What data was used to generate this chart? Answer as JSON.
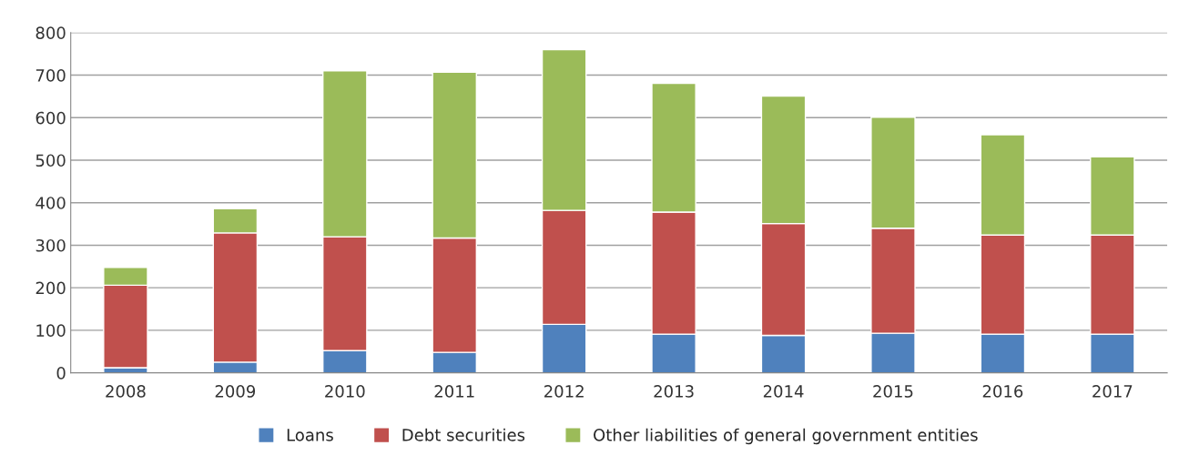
{
  "chart_data": {
    "type": "bar",
    "stacked": true,
    "categories": [
      "2008",
      "2009",
      "2010",
      "2011",
      "2012",
      "2013",
      "2014",
      "2015",
      "2016",
      "2017"
    ],
    "series": [
      {
        "name": "Loans",
        "color": "#4f81bd",
        "values": [
          12,
          25,
          52,
          48,
          114,
          91,
          88,
          93,
          91,
          91
        ]
      },
      {
        "name": "Debt securities",
        "color": "#c0504d",
        "values": [
          194,
          304,
          268,
          269,
          268,
          287,
          263,
          247,
          233,
          233
        ]
      },
      {
        "name": "Other liabilities of general government entities",
        "color": "#9bbb59",
        "values": [
          42,
          57,
          390,
          390,
          378,
          303,
          300,
          261,
          236,
          184
        ]
      }
    ],
    "ylim": [
      0,
      800
    ],
    "yticks": [
      0,
      100,
      200,
      300,
      400,
      500,
      600,
      700,
      800
    ],
    "grid": "y",
    "legend": "bottom"
  }
}
